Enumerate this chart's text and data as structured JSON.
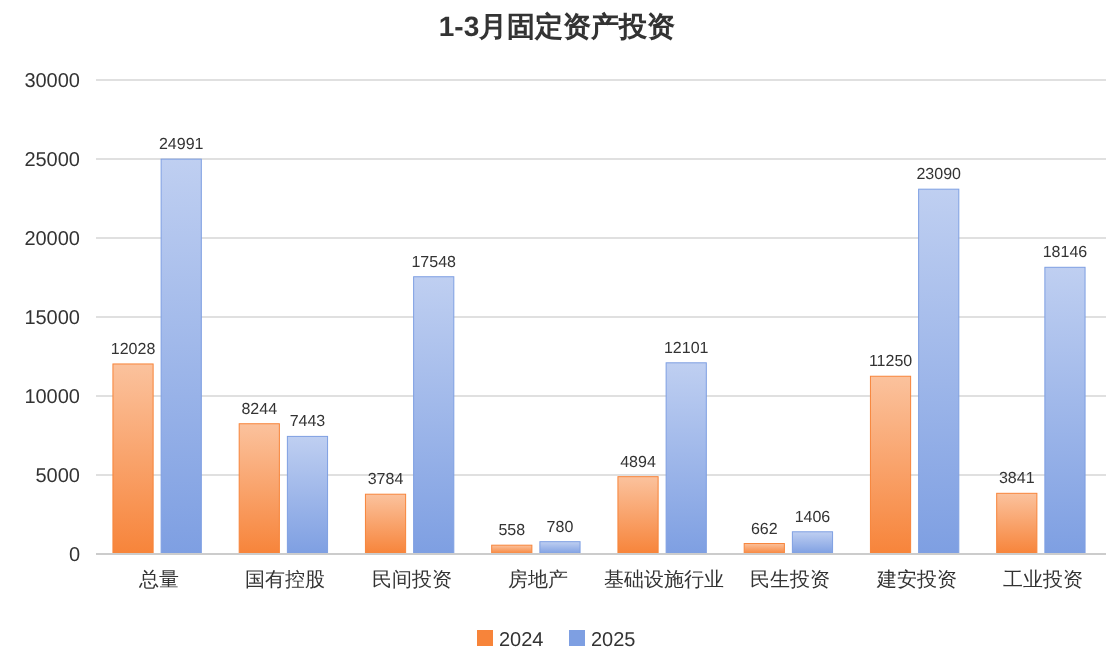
{
  "chart_data": {
    "type": "bar",
    "title": "1-3月固定资产投资",
    "categories": [
      "总量",
      "国有控股",
      "民间投资",
      "房地产",
      "基础设施行业",
      "民生投资",
      "建安投资",
      "工业投资"
    ],
    "series": [
      {
        "name": "2024",
        "color": "#f7843a",
        "values": [
          12028,
          8244,
          3784,
          558,
          4894,
          662,
          11250,
          3841
        ]
      },
      {
        "name": "2025",
        "color": "#7e9fe2",
        "values": [
          24991,
          7443,
          17548,
          780,
          12101,
          1406,
          23090,
          18146
        ]
      }
    ],
    "ylim": [
      0,
      30000
    ],
    "yticks": [
      0,
      5000,
      10000,
      15000,
      20000,
      25000,
      30000
    ],
    "grid": "y",
    "legend": "bottom",
    "data_labels": true
  }
}
